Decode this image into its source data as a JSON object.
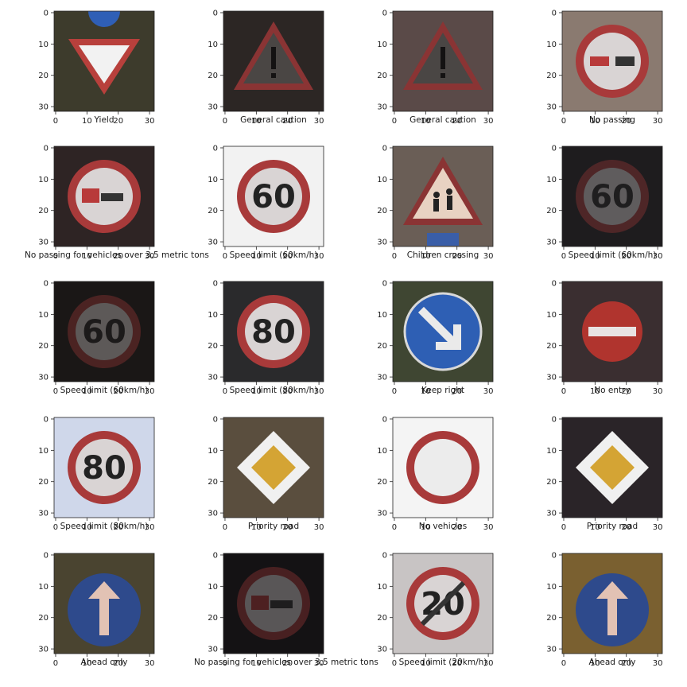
{
  "figure": {
    "axis_ticks": [
      "0",
      "10",
      "20",
      "30"
    ],
    "panels": [
      {
        "label": "Yield",
        "icon": "yield-sign-icon",
        "sign": "yield",
        "bg": "#3d3b2c"
      },
      {
        "label": "General caution",
        "icon": "warning-triangle-icon",
        "sign": "caution",
        "bg": "#2c2624"
      },
      {
        "label": "General caution",
        "icon": "warning-triangle-icon",
        "sign": "caution",
        "bg": "#5a4a48"
      },
      {
        "label": "No passing",
        "icon": "no-passing-sign-icon",
        "sign": "nopassing",
        "bg": "#8a7a70"
      },
      {
        "label": "No passing for vehicles over 3.5 metric tons",
        "icon": "no-passing-trucks-sign-icon",
        "sign": "nopassingtruck",
        "bg": "#2e2424"
      },
      {
        "label": "Speed limit (60km/h)",
        "icon": "speed-limit-sign-icon",
        "sign": "speed",
        "text": "60",
        "bg": "#f2f2f2"
      },
      {
        "label": "Children crossing",
        "icon": "children-crossing-sign-icon",
        "sign": "children",
        "bg": "#6a5e56"
      },
      {
        "label": "Speed limit (60km/h)",
        "icon": "speed-limit-sign-icon",
        "sign": "speed",
        "text": "60",
        "bg": "#1e1c1e",
        "dim": true
      },
      {
        "label": "Speed limit (60km/h)",
        "icon": "speed-limit-sign-icon",
        "sign": "speed",
        "text": "60",
        "bg": "#1a1716",
        "dim": true
      },
      {
        "label": "Speed limit (80km/h)",
        "icon": "speed-limit-sign-icon",
        "sign": "speed",
        "text": "80",
        "bg": "#2a2a2c"
      },
      {
        "label": "Keep right",
        "icon": "keep-right-sign-icon",
        "sign": "keepright",
        "bg": "#3f4632"
      },
      {
        "label": "No entry",
        "icon": "no-entry-sign-icon",
        "sign": "noentry",
        "bg": "#3a2e30"
      },
      {
        "label": "Speed limit (80km/h)",
        "icon": "speed-limit-sign-icon",
        "sign": "speed",
        "text": "80",
        "bg": "#cfd7ea"
      },
      {
        "label": "Priority road",
        "icon": "priority-road-sign-icon",
        "sign": "priority",
        "bg": "#5a4e3e"
      },
      {
        "label": "No vehicles",
        "icon": "no-vehicles-sign-icon",
        "sign": "novehicles",
        "bg": "#f4f4f4"
      },
      {
        "label": "Priority road",
        "icon": "priority-road-sign-icon",
        "sign": "priority",
        "bg": "#2a2428"
      },
      {
        "label": "Ahead only",
        "icon": "ahead-only-sign-icon",
        "sign": "ahead",
        "bg": "#4a4430"
      },
      {
        "label": "No passing for vehicles over 3.5 metric tons",
        "icon": "no-passing-trucks-sign-icon",
        "sign": "nopassingtruck",
        "bg": "#141214",
        "dim": true
      },
      {
        "label": "Speed limit (20km/h)",
        "icon": "speed-limit-sign-icon",
        "sign": "speed",
        "text": "20",
        "bg": "#c8c4c4"
      },
      {
        "label": "Ahead only",
        "icon": "ahead-only-sign-icon",
        "sign": "ahead",
        "bg": "#7a6030"
      }
    ]
  }
}
